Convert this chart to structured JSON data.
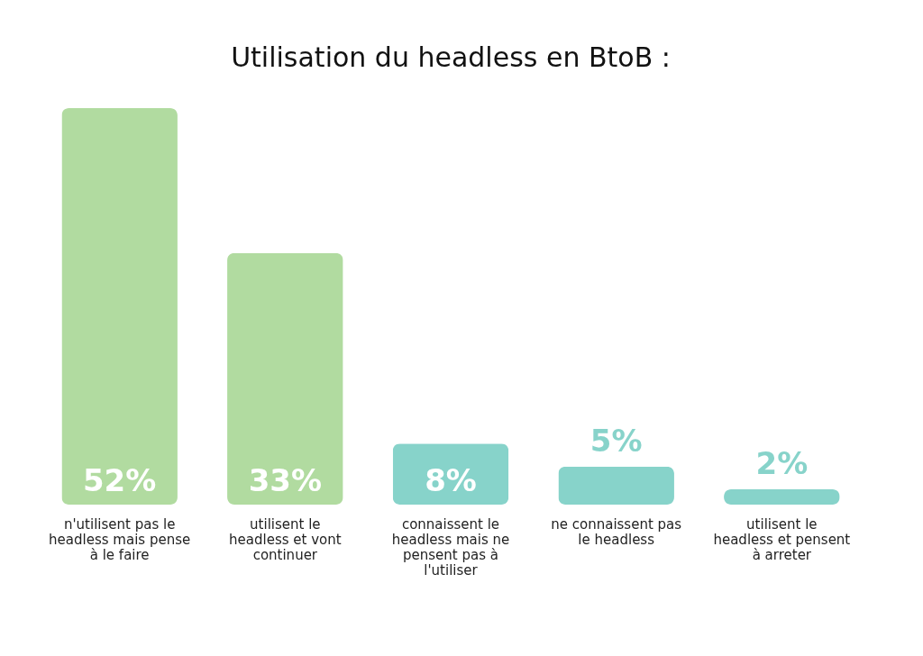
{
  "chart_data": {
    "type": "bar",
    "title": "Utilisation du headless en BtoB :",
    "categories": [
      "n'utilisent pas le headless mais pense à le faire",
      "utilisent le headless et vont continuer",
      "connaissent le headless mais ne pensent pas à l'utiliser",
      "ne connaissent pas le headless",
      "utilisent le headless et pensent à arreter"
    ],
    "values": [
      52,
      33,
      8,
      5,
      2
    ],
    "value_labels": [
      "52%",
      "33%",
      "8%",
      "5%",
      "2%"
    ],
    "colors": [
      "#b1dba0",
      "#b1dba0",
      "#87d3ca",
      "#87d3ca",
      "#87d3ca"
    ],
    "grid": false
  }
}
